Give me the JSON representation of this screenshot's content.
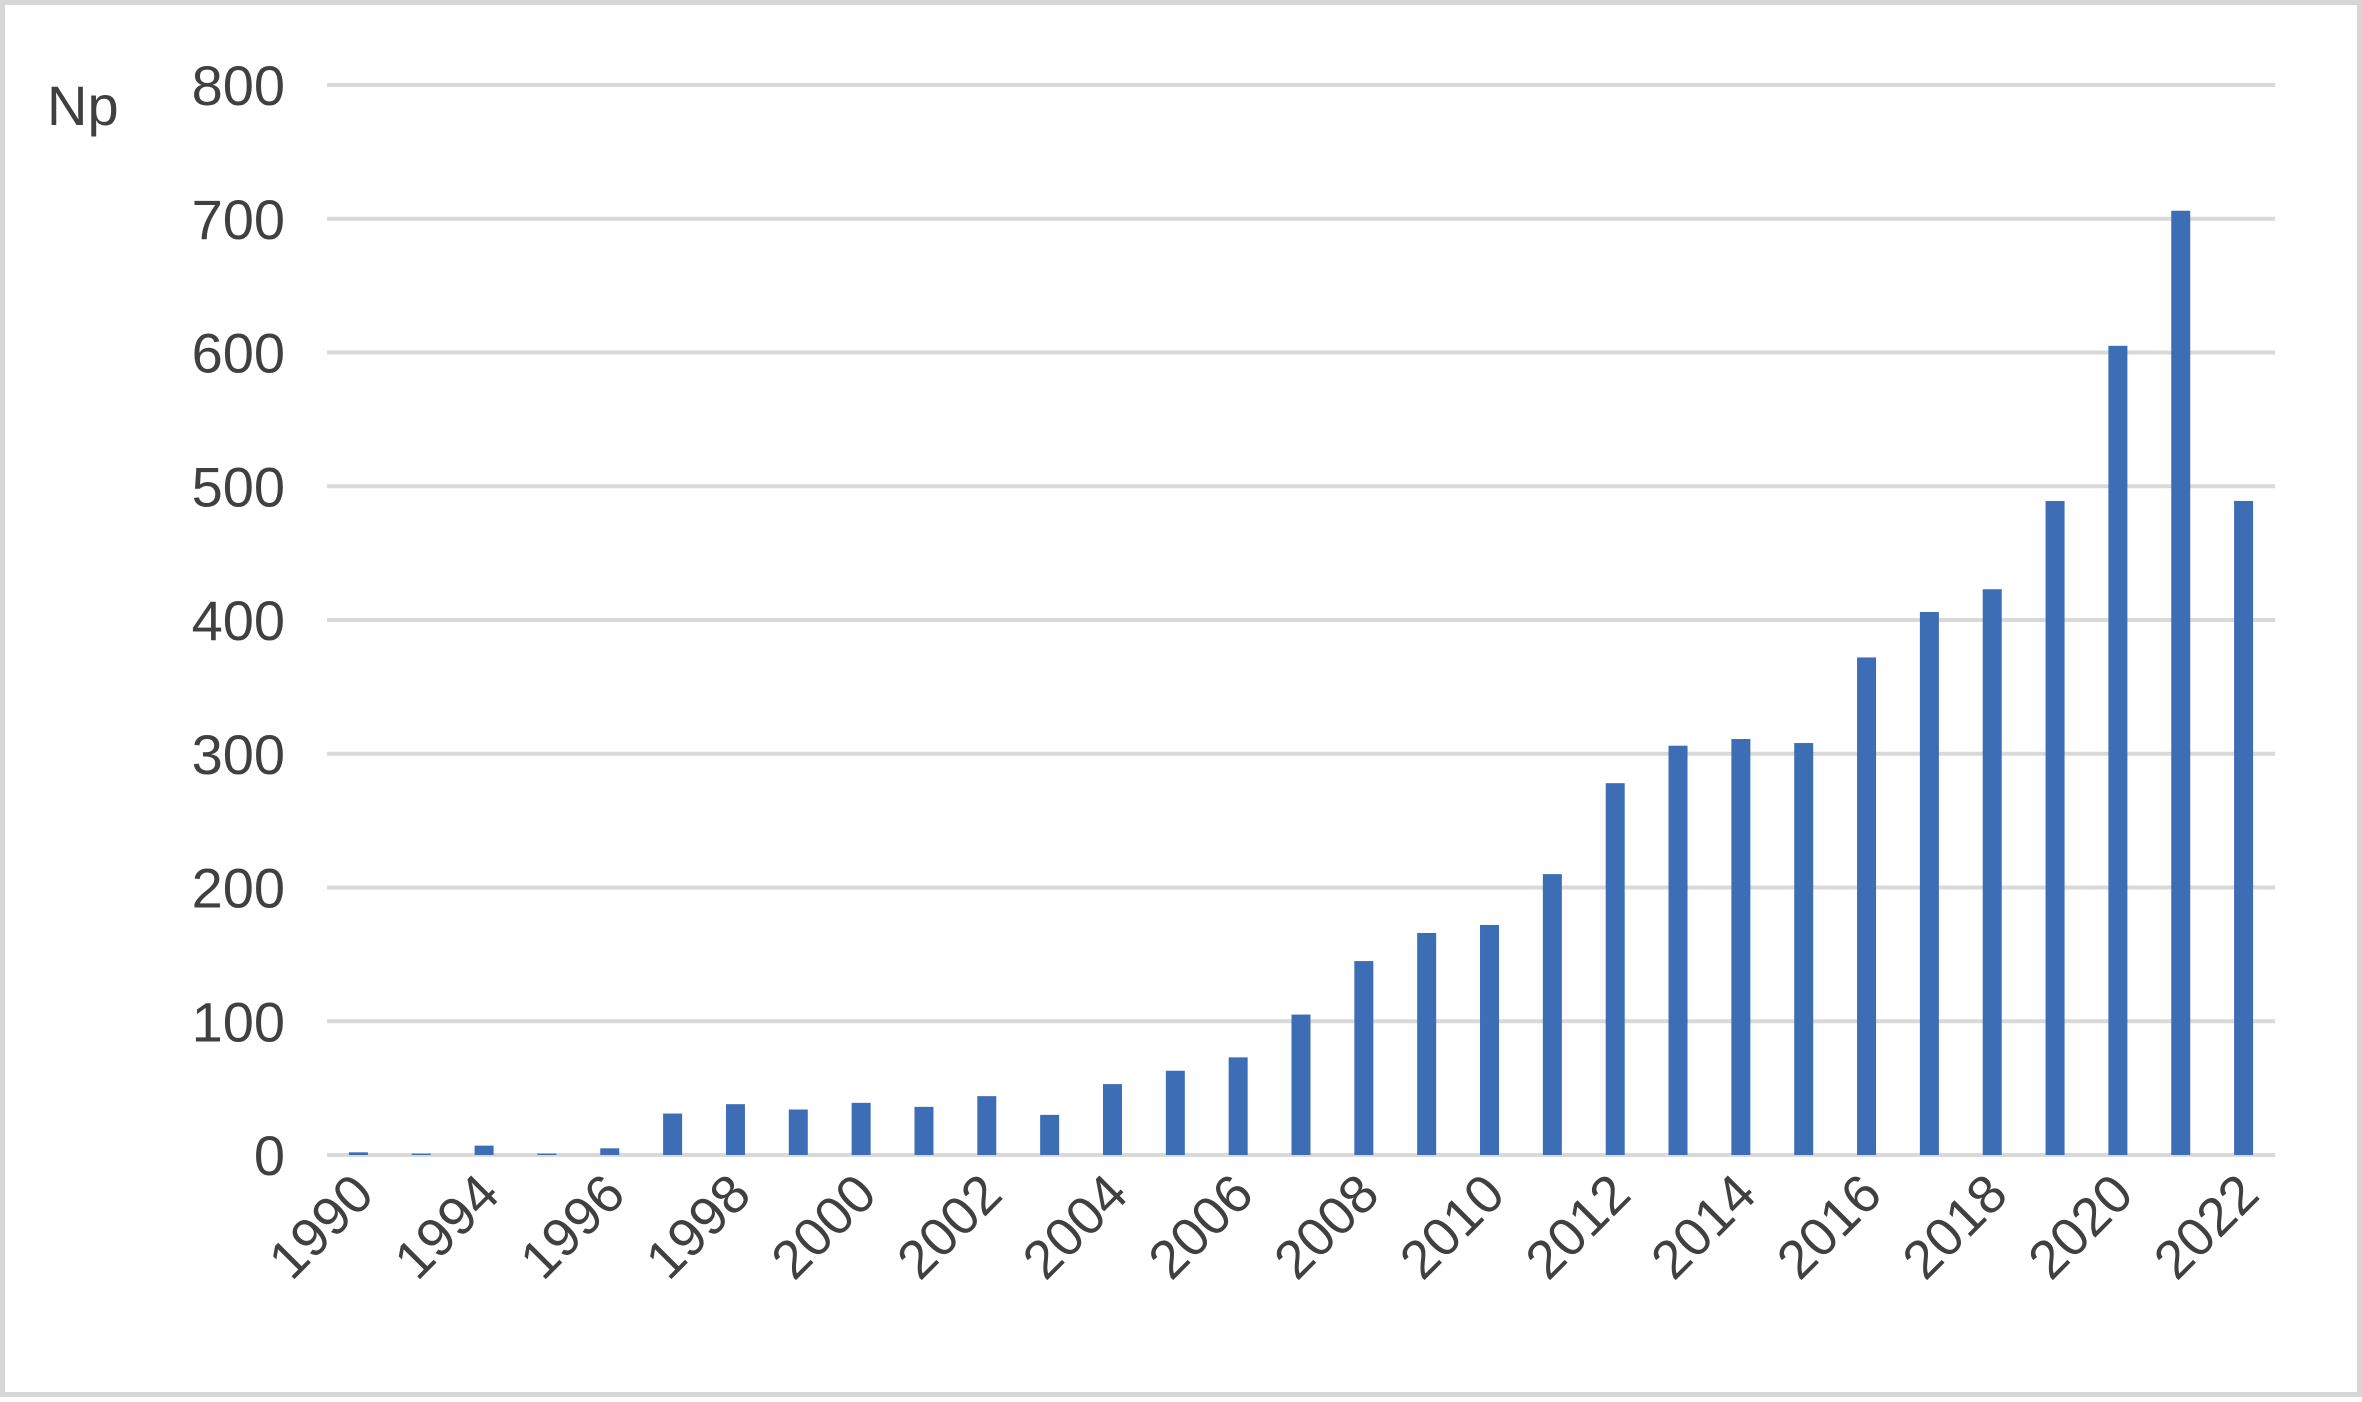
{
  "chart_data": {
    "type": "bar",
    "ylabel": "Np",
    "ylim": [
      0,
      800
    ],
    "yticks": [
      0,
      100,
      200,
      300,
      400,
      500,
      600,
      700,
      800
    ],
    "grid": true,
    "categories": [
      "1990",
      "1993",
      "1994",
      "1995",
      "1996",
      "1997",
      "1998",
      "1999",
      "2000",
      "2001",
      "2002",
      "2003",
      "2004",
      "2005",
      "2006",
      "2007",
      "2008",
      "2009",
      "2010",
      "2011",
      "2012",
      "2013",
      "2014",
      "2015",
      "2016",
      "2017",
      "2018",
      "2019",
      "2020",
      "2021",
      "2022"
    ],
    "xtick_labels": [
      "1990",
      "",
      "1994",
      "",
      "1996",
      "",
      "1998",
      "",
      "2000",
      "",
      "2002",
      "",
      "2004",
      "",
      "2006",
      "",
      "2008",
      "",
      "2010",
      "",
      "2012",
      "",
      "2014",
      "",
      "2016",
      "",
      "2018",
      "",
      "2020",
      "",
      "2022"
    ],
    "values": [
      2,
      1,
      7,
      1,
      5,
      31,
      38,
      34,
      39,
      36,
      44,
      30,
      53,
      63,
      73,
      105,
      145,
      166,
      172,
      210,
      278,
      306,
      311,
      308,
      372,
      406,
      423,
      489,
      605,
      706,
      489
    ],
    "colors": {
      "bar": "#3d6db5",
      "grid": "#d9d9d9",
      "text": "#404040"
    }
  }
}
